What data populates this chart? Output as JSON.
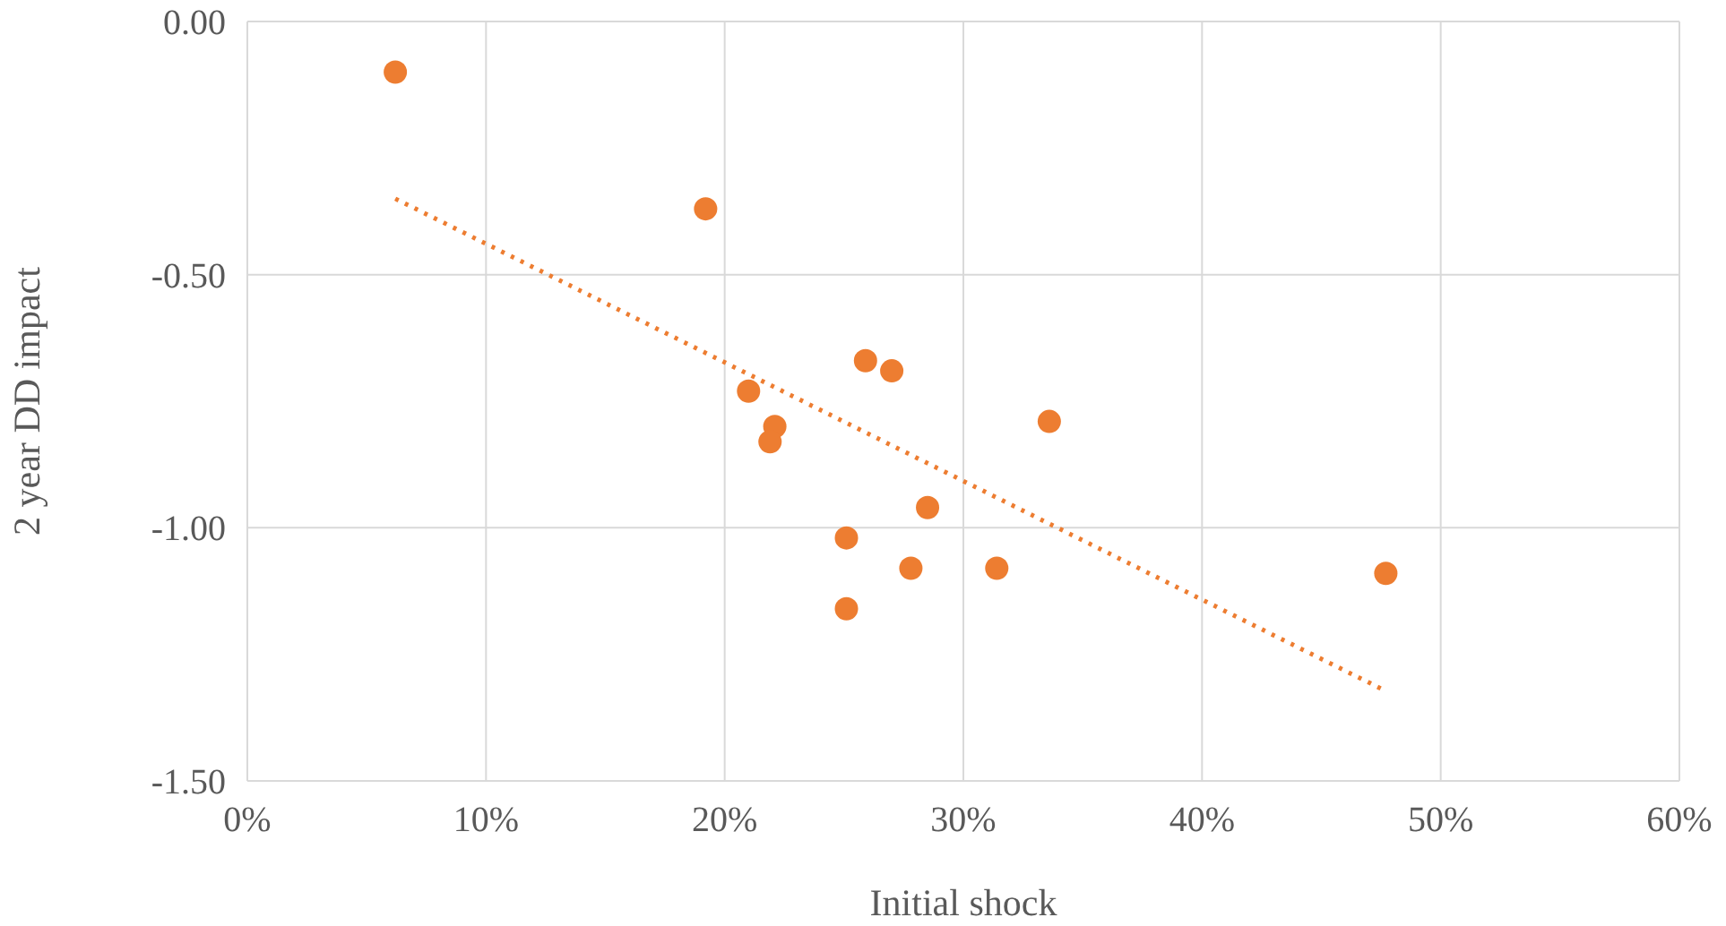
{
  "chart_data": {
    "type": "scatter",
    "xlabel": "Initial shock",
    "ylabel": "2 year DD impact",
    "series": [
      {
        "color": "#ed7d31",
        "marker": "circle",
        "x": [
          0.062,
          0.192,
          0.21,
          0.221,
          0.219,
          0.259,
          0.27,
          0.336,
          0.285,
          0.251,
          0.251,
          0.278,
          0.314,
          0.477
        ],
        "values": [
          -0.1,
          -0.37,
          -0.73,
          -0.8,
          -0.83,
          -0.67,
          -0.69,
          -0.79,
          -0.96,
          -1.02,
          -1.16,
          -1.08,
          -1.08,
          -1.09
        ]
      },
      {
        "type": "line",
        "color": "#ed7d31",
        "line_style": "dotted",
        "marker": "none",
        "x": [
          0.062,
          0.476
        ],
        "values": [
          -0.35,
          -1.32
        ]
      }
    ],
    "xlim": [
      0,
      0.6
    ],
    "xticks": [
      {
        "value": 0,
        "label": "0%"
      },
      {
        "value": 0.1,
        "label": "10%"
      },
      {
        "value": 0.2,
        "label": "20%"
      },
      {
        "value": 0.3,
        "label": "30%"
      },
      {
        "value": 0.4,
        "label": "40%"
      },
      {
        "value": 0.5,
        "label": "50%"
      },
      {
        "value": 0.6,
        "label": "60%"
      }
    ],
    "ylim": [
      -1.5,
      0
    ],
    "yticks": [
      {
        "value": -1.5,
        "label": "-1.50"
      },
      {
        "value": -1,
        "label": "-1.00"
      },
      {
        "value": -0.5,
        "label": "-0.50"
      },
      {
        "value": 0,
        "label": "0.00"
      }
    ],
    "grid": true
  }
}
